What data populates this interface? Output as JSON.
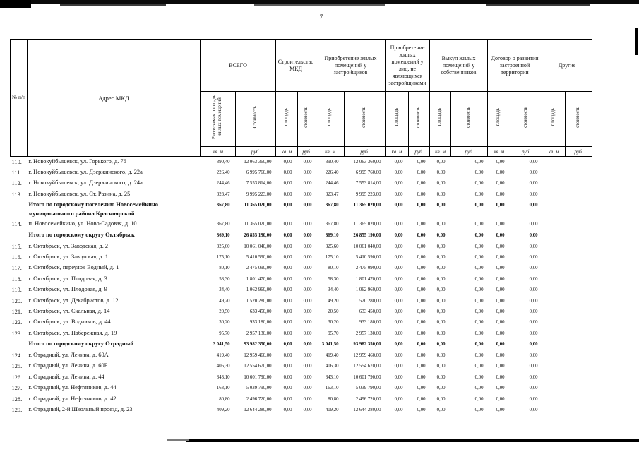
{
  "page": {
    "number": "7"
  },
  "table": {
    "col1_header": "№ п/п",
    "col2_header": "Адрес МКД",
    "groups": [
      {
        "label": "ВСЕГО",
        "sub": [
          "Расселяемая площадь жилых помещений",
          "Стоимость"
        ]
      },
      {
        "label": "Строительство МКД",
        "sub": [
          "площадь",
          "стоимость"
        ]
      },
      {
        "label": "Приобретение жилых помещений у застройщиков",
        "sub": [
          "площадь",
          "стоимость"
        ]
      },
      {
        "label": "Приобретение жилых помещений у лиц, не являющихся застройщиками",
        "sub": [
          "площадь",
          "стоимость"
        ]
      },
      {
        "label": "Выкуп жилых помещений у собственников",
        "sub": [
          "площадь",
          "стоимость"
        ]
      },
      {
        "label": "Договор о развитии застроенной территории",
        "sub": [
          "площадь",
          "стоимость"
        ]
      },
      {
        "label": "Другие",
        "sub": [
          "площадь",
          "стоимость"
        ]
      }
    ],
    "units": [
      "кв. м",
      "руб.",
      "кв. м",
      "руб.",
      "кв. м",
      "руб.",
      "кв. м",
      "руб.",
      "кв. м",
      "руб.",
      "кв. м",
      "руб.",
      "кв. м",
      "руб."
    ],
    "rows": [
      {
        "num": "110.",
        "address": "г. Новокуйбышевск, ул. Горького, д.  76",
        "bold": false,
        "cells": [
          "390,40",
          "12 063 360,00",
          "0,00",
          "0,00",
          "390,40",
          "12 063 360,00",
          "0,00",
          "0,00",
          "0,00",
          "0,00",
          "0,00",
          "0,00",
          "",
          ""
        ]
      },
      {
        "num": "111.",
        "address": "г. Новокуйбышевск, ул. Дзержинского, д.  22а",
        "bold": false,
        "cells": [
          "226,40",
          "6 995 760,00",
          "0,00",
          "0,00",
          "226,40",
          "6 995 760,00",
          "0,00",
          "0,00",
          "0,00",
          "0,00",
          "0,00",
          "0,00",
          "",
          ""
        ]
      },
      {
        "num": "112.",
        "address": "г. Новокуйбышевск, ул. Дзержинского, д.  24а",
        "bold": false,
        "cells": [
          "244,46",
          "7 553 814,00",
          "0,00",
          "0,00",
          "244,46",
          "7 553 814,00",
          "0,00",
          "0,00",
          "0,00",
          "0,00",
          "0,00",
          "0,00",
          "",
          ""
        ]
      },
      {
        "num": "113.",
        "address": "г. Новокуйбышевск, ул.  Ст. Разина, д.  25",
        "bold": false,
        "cells": [
          "323,47",
          "9 995 223,00",
          "0,00",
          "0,00",
          "323,47",
          "9 995 223,00",
          "0,00",
          "0,00",
          "0,00",
          "0,00",
          "0,00",
          "0,00",
          "",
          ""
        ]
      },
      {
        "num": "",
        "address": "Итого по городскому поселению Новосемейкино муниципального района Красноярский",
        "bold": true,
        "cells": [
          "367,80",
          "11 365 020,00",
          "0,00",
          "0,00",
          "367,80",
          "11 365 020,00",
          "0,00",
          "0,00",
          "0,00",
          "0,00",
          "0,00",
          "0,00",
          "",
          ""
        ]
      },
      {
        "num": "114.",
        "address": "п. Новосемейкино, ул. Ново-Садовая, д.  10",
        "bold": false,
        "cells": [
          "367,80",
          "11 365 020,00",
          "0,00",
          "0,00",
          "367,80",
          "11 365 020,00",
          "0,00",
          "0,00",
          "0,00",
          "0,00",
          "0,00",
          "0,00",
          "",
          ""
        ]
      },
      {
        "num": "",
        "address": "Итого по городскому округу Октябрьск",
        "bold": true,
        "cells": [
          "869,10",
          "26 855 190,00",
          "0,00",
          "0,00",
          "869,10",
          "26 855 190,00",
          "0,00",
          "0,00",
          "0,00",
          "0,00",
          "0,00",
          "0,00",
          "",
          ""
        ]
      },
      {
        "num": "115.",
        "address": "г. Октябрьск, ул.  Заводская, д.  2",
        "bold": false,
        "cells": [
          "325,60",
          "10 061 040,00",
          "0,00",
          "0,00",
          "325,60",
          "10 061 040,00",
          "0,00",
          "0,00",
          "0,00",
          "0,00",
          "0,00",
          "0,00",
          "",
          ""
        ]
      },
      {
        "num": "116.",
        "address": "г. Октябрьск, ул.  Заводская, д.  1",
        "bold": false,
        "cells": [
          "175,10",
          "5 410 590,00",
          "0,00",
          "0,00",
          "175,10",
          "5 410 590,00",
          "0,00",
          "0,00",
          "0,00",
          "0,00",
          "0,00",
          "0,00",
          "",
          ""
        ]
      },
      {
        "num": "117.",
        "address": "г. Октябрьск, переулок Водный, д.  1",
        "bold": false,
        "cells": [
          "80,10",
          "2 475 090,00",
          "0,00",
          "0,00",
          "80,10",
          "2 475 090,00",
          "0,00",
          "0,00",
          "0,00",
          "0,00",
          "0,00",
          "0,00",
          "",
          ""
        ]
      },
      {
        "num": "118.",
        "address": "г. Октябрьск, ул.  Плодовая, д.  3",
        "bold": false,
        "cells": [
          "58,30",
          "1 801 470,00",
          "0,00",
          "0,00",
          "58,30",
          "1 801 470,00",
          "0,00",
          "0,00",
          "0,00",
          "0,00",
          "0,00",
          "0,00",
          "",
          ""
        ]
      },
      {
        "num": "119.",
        "address": "г. Октябрьск, ул.  Плодовая, д.  9",
        "bold": false,
        "cells": [
          "34,40",
          "1 062 960,00",
          "0,00",
          "0,00",
          "34,40",
          "1 062 960,00",
          "0,00",
          "0,00",
          "0,00",
          "0,00",
          "0,00",
          "0,00",
          "",
          ""
        ]
      },
      {
        "num": "120.",
        "address": "г. Октябрьск, ул. Декабристов, д. 12",
        "bold": false,
        "cells": [
          "49,20",
          "1 520 280,00",
          "0,00",
          "0,00",
          "49,20",
          "1 520 280,00",
          "0,00",
          "0,00",
          "0,00",
          "0,00",
          "0,00",
          "0,00",
          "",
          ""
        ]
      },
      {
        "num": "121.",
        "address": "г. Октябрьск, ул.  Скальная, д.  14",
        "bold": false,
        "cells": [
          "20,50",
          "633 450,00",
          "0,00",
          "0,00",
          "20,50",
          "633 450,00",
          "0,00",
          "0,00",
          "0,00",
          "0,00",
          "0,00",
          "0,00",
          "",
          ""
        ]
      },
      {
        "num": "122.",
        "address": "г. Октябрьск, ул.  Водников, д.  44",
        "bold": false,
        "cells": [
          "30,20",
          "933 180,00",
          "0,00",
          "0,00",
          "30,20",
          "933 180,00",
          "0,00",
          "0,00",
          "0,00",
          "0,00",
          "0,00",
          "0,00",
          "",
          ""
        ]
      },
      {
        "num": "123.",
        "address": "г. Октябрьск, ул.  Набережная, д.  19",
        "bold": false,
        "cells": [
          "95,70",
          "2 957 130,00",
          "0,00",
          "0,00",
          "95,70",
          "2 957 130,00",
          "0,00",
          "0,00",
          "0,00",
          "0,00",
          "0,00",
          "0,00",
          "",
          ""
        ]
      },
      {
        "num": "",
        "address": "Итого по городскому округу  Отрадный",
        "bold": true,
        "cells": [
          "3 041,50",
          "93 982 350,00",
          "0,00",
          "0,00",
          "3 041,50",
          "93 982 350,00",
          "0,00",
          "0,00",
          "0,00",
          "0,00",
          "0,00",
          "0,00",
          "",
          ""
        ]
      },
      {
        "num": "124.",
        "address": "г. Отрадный, ул. Ленина, д.  60А",
        "bold": false,
        "cells": [
          "419,40",
          "12 959 460,00",
          "0,00",
          "0,00",
          "419,40",
          "12 959 460,00",
          "0,00",
          "0,00",
          "0,00",
          "0,00",
          "0,00",
          "0,00",
          "",
          ""
        ]
      },
      {
        "num": "125.",
        "address": "г. Отрадный, ул. Ленина, д.  60Б",
        "bold": false,
        "cells": [
          "406,30",
          "12 554 670,00",
          "0,00",
          "0,00",
          "406,30",
          "12 554 670,00",
          "0,00",
          "0,00",
          "0,00",
          "0,00",
          "0,00",
          "0,00",
          "",
          ""
        ]
      },
      {
        "num": "126.",
        "address": "г. Отрадный, ул.  Ленина, д.  44",
        "bold": false,
        "cells": [
          "343,10",
          "10 601 790,00",
          "0,00",
          "0,00",
          "343,10",
          "10 601 790,00",
          "0,00",
          "0,00",
          "0,00",
          "0,00",
          "0,00",
          "0,00",
          "",
          ""
        ]
      },
      {
        "num": "127.",
        "address": "г. Отрадный, ул.  Нефтяников, д.  44",
        "bold": false,
        "cells": [
          "163,10",
          "5 039 790,00",
          "0,00",
          "0,00",
          "163,10",
          "5 039 790,00",
          "0,00",
          "0,00",
          "0,00",
          "0,00",
          "0,00",
          "0,00",
          "",
          ""
        ]
      },
      {
        "num": "128.",
        "address": "г. Отрадный, ул.  Нефтяников, д.  42",
        "bold": false,
        "cells": [
          "80,80",
          "2 496 720,00",
          "0,00",
          "0,00",
          "80,80",
          "2 496 720,00",
          "0,00",
          "0,00",
          "0,00",
          "0,00",
          "0,00",
          "0,00",
          "",
          ""
        ]
      },
      {
        "num": "129.",
        "address": "г. Отрадный, 2-й Школьный проезд, д.  23",
        "bold": false,
        "cells": [
          "409,20",
          "12 644 280,00",
          "0,00",
          "0,00",
          "409,20",
          "12 644 280,00",
          "0,00",
          "0,00",
          "0,00",
          "0,00",
          "0,00",
          "0,00",
          "",
          ""
        ]
      }
    ]
  }
}
